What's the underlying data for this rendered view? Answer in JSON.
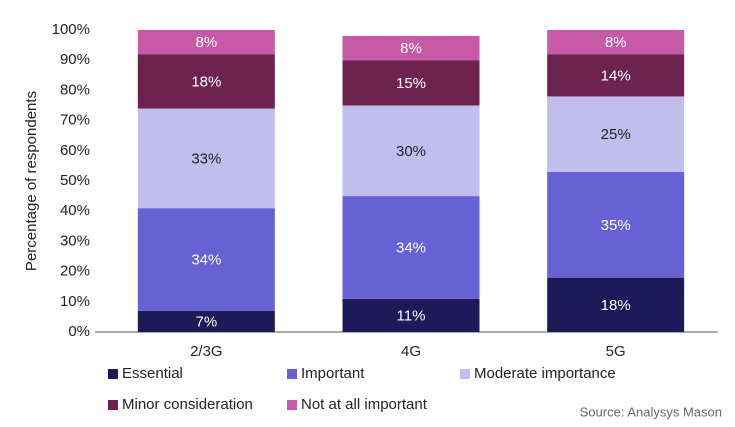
{
  "chart_data": {
    "type": "stacked_bar",
    "y_label": "Percentage of respondents",
    "source": "Source: Analysys Mason",
    "categories": [
      "2/3G",
      "4G",
      "5G"
    ],
    "series": [
      {
        "name": "Essential",
        "color": "#1e1a5a",
        "text_color": "#ffffff",
        "values": [
          7,
          11,
          18
        ],
        "value_labels": [
          "7%",
          "11%",
          "18%"
        ]
      },
      {
        "name": "Important",
        "color": "#6662d5",
        "text_color": "#ffffff",
        "values": [
          34,
          34,
          35
        ],
        "value_labels": [
          "34%",
          "34%",
          "35%"
        ]
      },
      {
        "name": "Moderate importance",
        "color": "#c1beed",
        "text_color": "#222222",
        "values": [
          33,
          30,
          25
        ],
        "value_labels": [
          "33%",
          "30%",
          "25%"
        ]
      },
      {
        "name": "Minor consideration",
        "color": "#6d234f",
        "text_color": "#ffffff",
        "values": [
          18,
          15,
          14
        ],
        "value_labels": [
          "18%",
          "15%",
          "14%"
        ]
      },
      {
        "name": "Not at all important",
        "color": "#c65aa6",
        "text_color": "#ffffff",
        "values": [
          8,
          8,
          8
        ],
        "value_labels": [
          "8%",
          "8%",
          "8%"
        ]
      }
    ],
    "ylim": [
      0,
      100
    ],
    "yticks": [
      {
        "value": 0,
        "label": "0%"
      },
      {
        "value": 10,
        "label": "10%"
      },
      {
        "value": 20,
        "label": "20%"
      },
      {
        "value": 30,
        "label": "30%"
      },
      {
        "value": 40,
        "label": "40%"
      },
      {
        "value": 50,
        "label": "50%"
      },
      {
        "value": 60,
        "label": "60%"
      },
      {
        "value": 70,
        "label": "70%"
      },
      {
        "value": 80,
        "label": "80%"
      },
      {
        "value": 90,
        "label": "90%"
      },
      {
        "value": 100,
        "label": "100%"
      }
    ],
    "grid": false
  }
}
